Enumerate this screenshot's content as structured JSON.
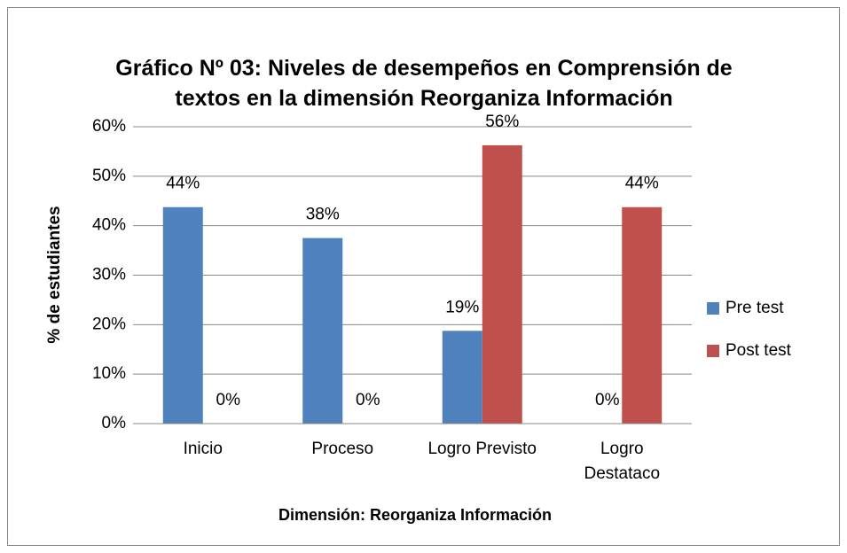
{
  "chart_data": {
    "type": "bar",
    "title": "Gráfico Nº 03: Niveles de desempeños en Comprensión de textos en la dimensión Reorganiza Información",
    "x_label": "Dimensión: Reorganiza Información",
    "y_label": "% de estudiantes",
    "categories": [
      "Inicio",
      "Proceso",
      "Logro Previsto",
      "Logro Destataco"
    ],
    "series": [
      {
        "name": "Pre test",
        "color": "#4f81bd",
        "values": [
          43.75,
          37.5,
          18.75,
          0
        ],
        "value_labels": [
          "44%",
          "38%",
          "19%",
          "0%"
        ]
      },
      {
        "name": "Post test",
        "color": "#c0504d",
        "values": [
          0,
          0,
          56.25,
          43.75
        ],
        "value_labels": [
          "0%",
          "0%",
          "56%",
          "44%"
        ]
      }
    ],
    "ylim": [
      0,
      60
    ],
    "yticks": [
      {
        "value": 0,
        "label": "0%"
      },
      {
        "value": 10,
        "label": "10%"
      },
      {
        "value": 20,
        "label": "20%"
      },
      {
        "value": 30,
        "label": "30%"
      },
      {
        "value": 40,
        "label": "40%"
      },
      {
        "value": 50,
        "label": "50%"
      },
      {
        "value": 60,
        "label": "60%"
      }
    ],
    "grid": true,
    "legend": "right"
  }
}
